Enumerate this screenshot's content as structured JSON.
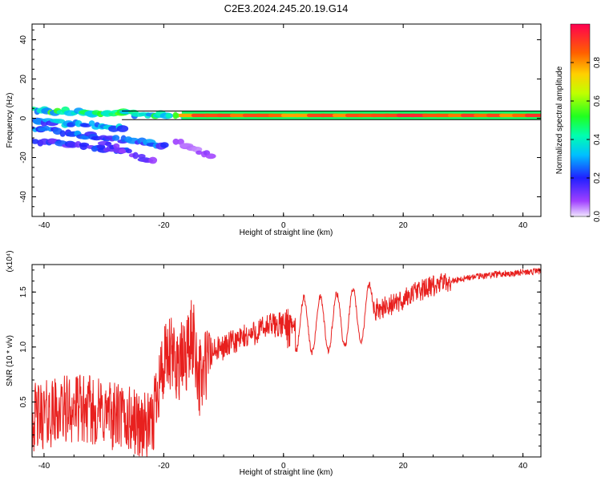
{
  "title": "C2E3.2024.245.20.19.G14",
  "colors": {
    "trace": "#e8201e",
    "axis": "#000000",
    "band": "#000000"
  },
  "chart_data": [
    {
      "type": "heatmap",
      "name": "spectrogram",
      "xlabel": "Height of straight line (km)",
      "ylabel": "Frequency (Hz)",
      "xlim": [
        -42,
        43
      ],
      "ylim": [
        -50,
        48
      ],
      "xticks": [
        "-40",
        "-20",
        "0",
        "20",
        "40"
      ],
      "xtick_values": [
        -40,
        -20,
        0,
        20,
        40
      ],
      "yticks": [
        "-40",
        "-20",
        "0",
        "20",
        "40"
      ],
      "ytick_values": [
        -40,
        -20,
        0,
        20,
        40
      ],
      "colorbar": {
        "label": "Normalized spectral amplitude",
        "ticks": [
          "0.0",
          "0.2",
          "0.4",
          "0.6",
          "0.8"
        ],
        "tick_values": [
          0.0,
          0.2,
          0.4,
          0.6,
          0.8
        ],
        "range": [
          0,
          1
        ]
      },
      "dominant_band": {
        "x_start": -17,
        "x_end": 43,
        "freq": 1.5,
        "amplitude": 0.95
      },
      "features": [
        {
          "x_start": -42,
          "x_end": -17,
          "freq_start": 4,
          "freq_end": 1.5,
          "amplitude": 0.45
        },
        {
          "x_start": -42,
          "x_end": -27,
          "freq_start": -1,
          "freq_end": -5,
          "amplitude": 0.3
        },
        {
          "x_start": -42,
          "x_end": -20,
          "freq_start": -5,
          "freq_end": -14,
          "amplitude": 0.25
        },
        {
          "x_start": -42,
          "x_end": -26,
          "freq_start": -11,
          "freq_end": -17,
          "amplitude": 0.2
        },
        {
          "x_start": -30,
          "x_end": -22,
          "freq_start": -12,
          "freq_end": -22,
          "amplitude": 0.15
        },
        {
          "x_start": -18,
          "x_end": -12,
          "freq_start": -12,
          "freq_end": -19,
          "amplitude": 0.08
        }
      ]
    },
    {
      "type": "line",
      "name": "snr",
      "xlabel": "Height of straight line (km)",
      "ylabel": "SNR (10 * v/v)",
      "scale_label": "(x10⁴)",
      "xlim": [
        -42,
        43
      ],
      "ylim": [
        0,
        1.75
      ],
      "xticks": [
        "-40",
        "-20",
        "0",
        "20",
        "40"
      ],
      "xtick_values": [
        -40,
        -20,
        0,
        20,
        40
      ],
      "yticks": [
        "0.5",
        "1.0",
        "1.5"
      ],
      "ytick_values": [
        0.5,
        1.0,
        1.5
      ],
      "envelope": {
        "x": [
          -42,
          -35,
          -30,
          -25,
          -22,
          -21,
          -19,
          -17,
          -15,
          -14,
          -12,
          -10,
          -8,
          -6,
          -4,
          -2,
          0,
          2,
          5,
          8,
          10,
          13,
          16,
          19,
          22,
          25,
          28,
          31,
          35,
          40,
          43
        ],
        "y": [
          0.35,
          0.45,
          0.4,
          0.32,
          0.25,
          0.7,
          0.9,
          0.85,
          1.1,
          0.7,
          0.95,
          1.0,
          1.05,
          1.1,
          1.15,
          1.2,
          1.2,
          1.2,
          1.2,
          1.22,
          1.25,
          1.3,
          1.35,
          1.4,
          1.5,
          1.55,
          1.6,
          1.63,
          1.66,
          1.68,
          1.69
        ]
      }
    }
  ]
}
